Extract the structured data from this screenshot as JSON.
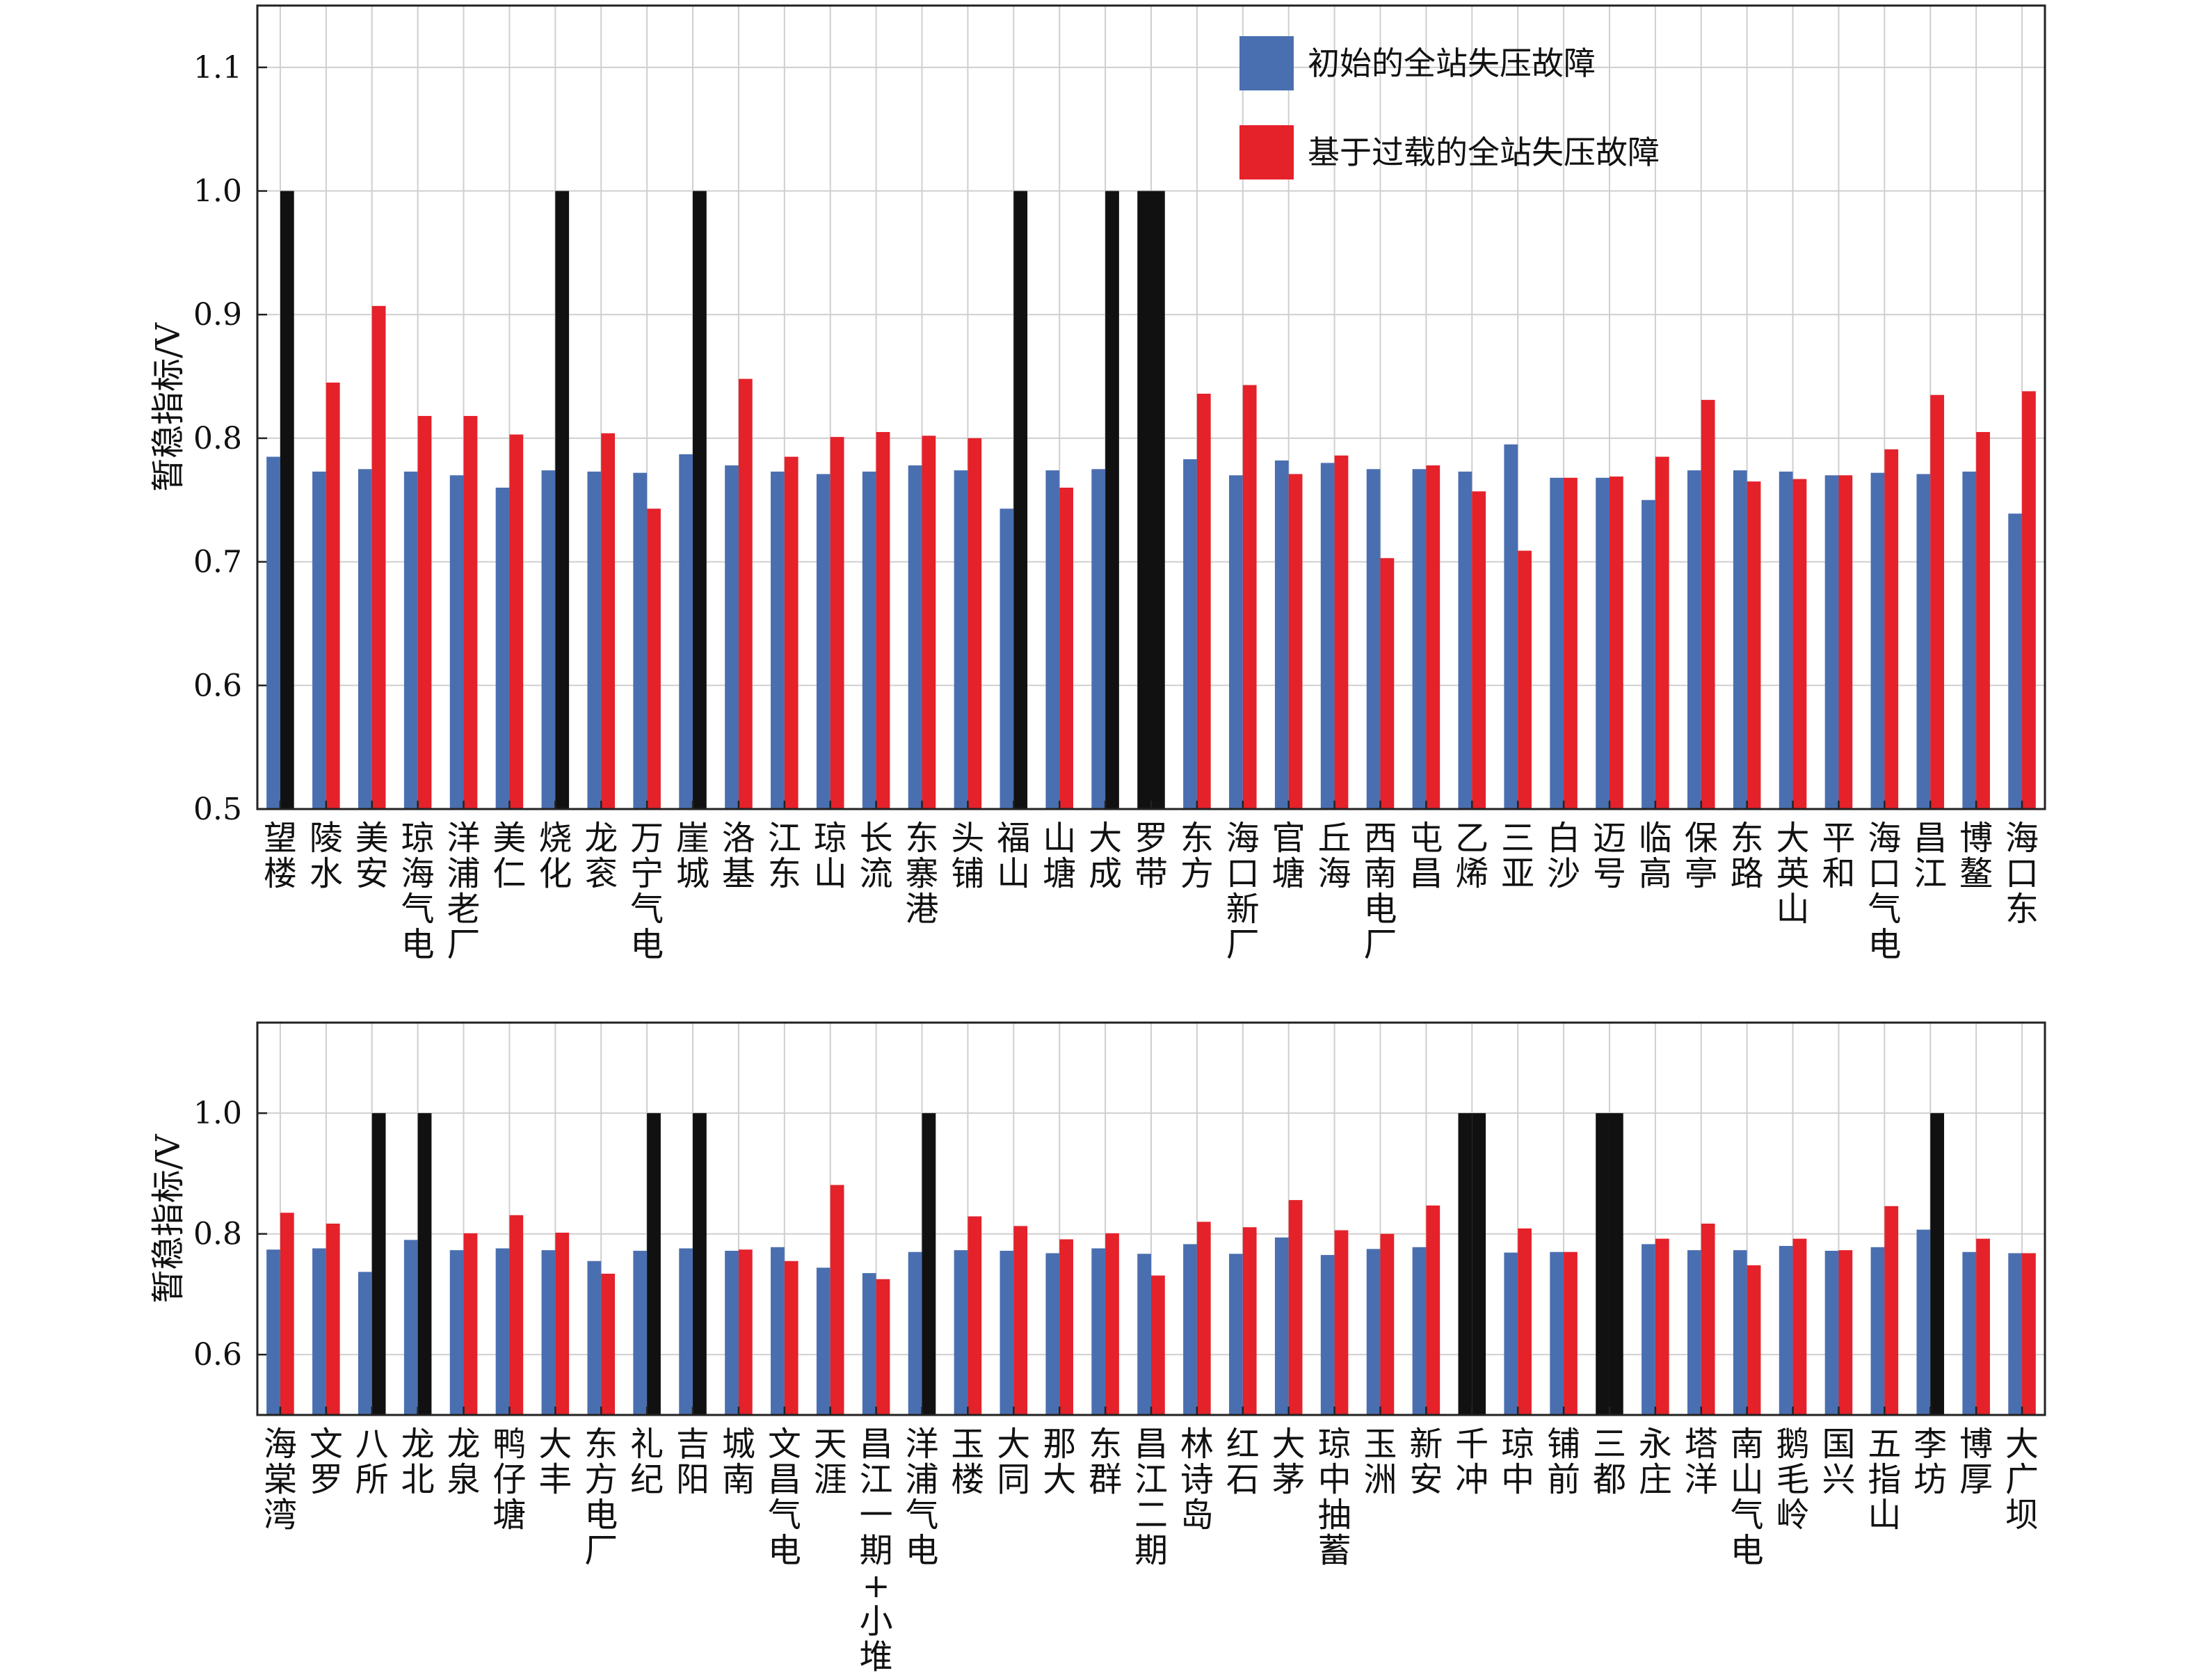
{
  "colors": {
    "initial": "#4a6fb0",
    "overload": "#e5212a",
    "unstable": "#111111",
    "grid": "#cfcfcf",
    "axis": "#222222"
  },
  "legend": {
    "items": [
      "初始的全站失压故障",
      "基于过载的全站失压故障"
    ]
  },
  "chart_data": [
    {
      "type": "bar",
      "ylabel": "暂稳指标/V",
      "ylim": [
        0.5,
        1.15
      ],
      "yticks": [
        0.5,
        0.6,
        0.7,
        0.8,
        0.9,
        1.0,
        1.1
      ],
      "ytick_labels": [
        "0.5",
        "0.6",
        "0.7",
        "0.8",
        "0.9",
        "1.0",
        "1.1"
      ],
      "grid": true,
      "legend_position": "top-right",
      "categories": [
        "望楼",
        "陵水",
        "美安",
        "琼海气电",
        "洋浦老厂",
        "美仁",
        "烧化",
        "龙衮",
        "万宁气电",
        "崖城",
        "洛基",
        "江东",
        "琼山",
        "长流",
        "东寨港",
        "头铺",
        "福山",
        "山塘",
        "大成",
        "罗带",
        "东方",
        "海口新厂",
        "官塘",
        "丘海",
        "西南电厂",
        "屯昌",
        "乙烯",
        "三亚",
        "白沙",
        "迈号",
        "临高",
        "保亭",
        "东路",
        "大英山",
        "平和",
        "海口气电",
        "昌江",
        "博鳌",
        "海口东"
      ],
      "series": [
        {
          "name": "初始的全站失压故障",
          "values": [
            0.785,
            0.773,
            0.775,
            0.773,
            0.77,
            0.76,
            0.774,
            0.773,
            0.772,
            0.787,
            0.778,
            0.773,
            0.771,
            0.773,
            0.778,
            0.774,
            0.743,
            0.774,
            0.775,
            1.0,
            0.783,
            0.77,
            0.782,
            0.78,
            0.775,
            0.775,
            0.773,
            0.795,
            0.768,
            0.768,
            0.75,
            0.774,
            0.774,
            0.773,
            0.77,
            0.772,
            0.771,
            0.773,
            0.739
          ]
        },
        {
          "name": "基于过载的全站失压故障",
          "values": [
            1.0,
            0.845,
            0.907,
            0.818,
            0.818,
            0.803,
            1.0,
            0.804,
            0.743,
            1.0,
            0.848,
            0.785,
            0.801,
            0.805,
            0.802,
            0.8,
            1.0,
            0.76,
            1.0,
            1.0,
            0.836,
            0.843,
            0.771,
            0.786,
            0.703,
            0.778,
            0.757,
            0.709,
            0.768,
            0.769,
            0.785,
            0.831,
            0.765,
            0.767,
            0.77,
            0.791,
            0.835,
            0.805,
            0.838
          ]
        }
      ]
    },
    {
      "type": "bar",
      "ylabel": "暂稳指标/V",
      "ylim": [
        0.5,
        1.15
      ],
      "yticks": [
        0.6,
        0.8,
        1.0
      ],
      "ytick_labels": [
        "0.6",
        "0.8",
        "1.0"
      ],
      "grid": true,
      "categories": [
        "海棠湾",
        "文罗",
        "八所",
        "龙北",
        "龙泉",
        "鸭仔塘",
        "大丰",
        "东方电厂",
        "礼纪",
        "吉阳",
        "城南",
        "文昌气电",
        "天涯",
        "昌江一期+小堆",
        "洋浦气电",
        "玉楼",
        "大同",
        "那大",
        "东群",
        "昌江二期",
        "林诗岛",
        "红石",
        "大茅",
        "琼中抽蓄",
        "玉洲",
        "新安",
        "千冲",
        "琼中",
        "铺前",
        "三都",
        "永庄",
        "塔洋",
        "南山气电",
        "鹅毛岭",
        "国兴",
        "五指山",
        "李坊",
        "博厚",
        "大广坝"
      ],
      "series": [
        {
          "name": "初始的全站失压故障",
          "values": [
            0.774,
            0.776,
            0.737,
            0.79,
            0.773,
            0.776,
            0.773,
            0.755,
            0.772,
            0.776,
            0.772,
            0.778,
            0.744,
            0.735,
            0.77,
            0.773,
            0.772,
            0.768,
            0.776,
            0.767,
            0.783,
            0.767,
            0.794,
            0.765,
            0.775,
            0.778,
            1.0,
            0.769,
            0.77,
            1.0,
            0.783,
            0.773,
            0.773,
            0.78,
            0.772,
            0.778,
            0.807,
            0.77,
            0.768
          ]
        },
        {
          "name": "基于过载的全站失压故障",
          "values": [
            0.835,
            0.817,
            1.0,
            1.0,
            0.801,
            0.831,
            0.802,
            0.734,
            1.0,
            1.0,
            0.774,
            0.755,
            0.881,
            0.725,
            1.0,
            0.829,
            0.813,
            0.791,
            0.801,
            0.731,
            0.82,
            0.811,
            0.856,
            0.806,
            0.8,
            0.847,
            1.0,
            0.809,
            0.77,
            1.0,
            0.792,
            0.817,
            0.748,
            0.792,
            0.773,
            0.846,
            1.0,
            0.792,
            0.768
          ]
        }
      ]
    }
  ]
}
